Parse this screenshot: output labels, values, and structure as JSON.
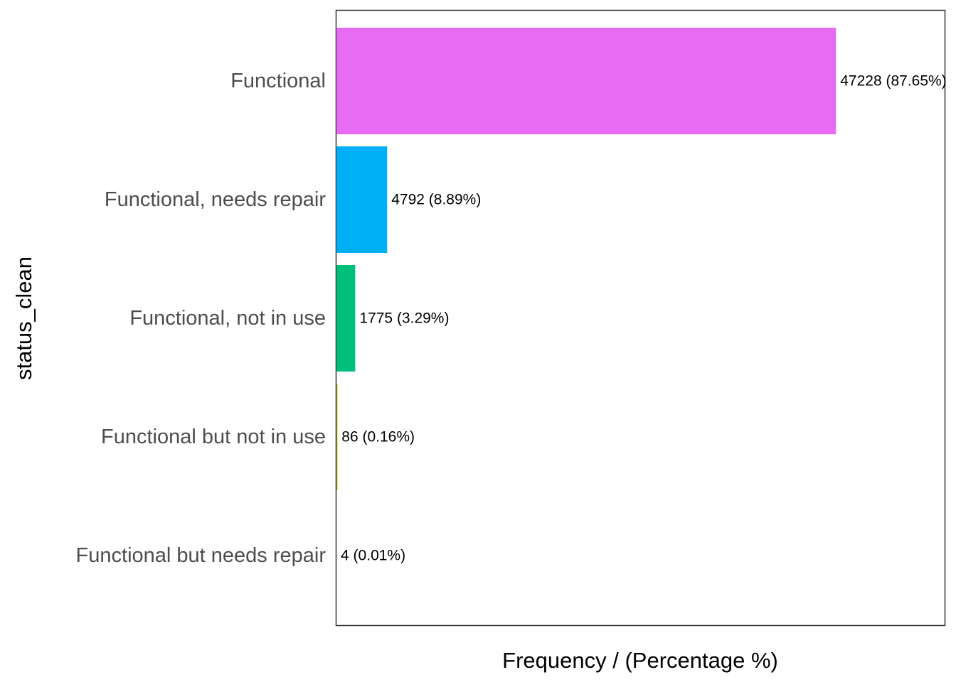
{
  "chart_data": {
    "type": "bar",
    "orientation": "horizontal",
    "xlabel": "Frequency / (Percentage %)",
    "ylabel": "status_clean",
    "grid": false,
    "legend": "none",
    "xlim": [
      0,
      57500
    ],
    "categories": [
      "Functional",
      "Functional, needs repair",
      "Functional, not in use",
      "Functional but not in use",
      "Functional but needs repair"
    ],
    "values": [
      47228,
      4792,
      1775,
      86,
      4
    ],
    "percentages": [
      87.65,
      8.89,
      3.29,
      0.16,
      0.01
    ],
    "data_labels": [
      "47228 (87.65%)",
      "4792 (8.89%)",
      "1775 (3.29%)",
      "86 (0.16%)",
      "4 (0.01%)"
    ],
    "colors": [
      "#E76BF3",
      "#00B0F6",
      "#00BF7D",
      "#A3A500",
      "#F8766D"
    ]
  }
}
